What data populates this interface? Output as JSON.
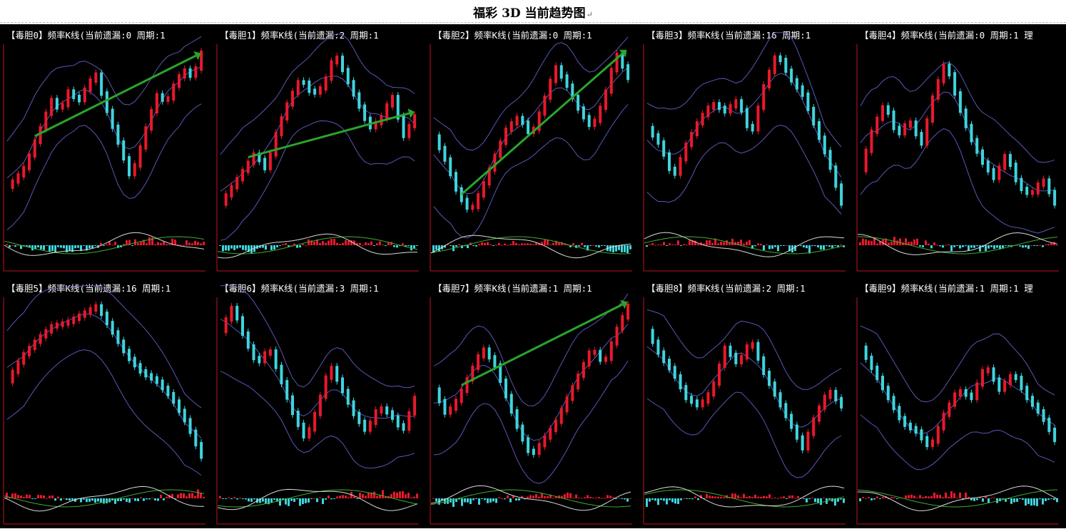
{
  "page": {
    "title": "福彩 3D 当前趋势图",
    "title_mark": "↵"
  },
  "colors": {
    "background": "#000000",
    "up": "#e8192c",
    "down": "#3fd4dd",
    "band": "#5b56b8",
    "frame": "#c0141c",
    "arrow": "#2aa52a",
    "ind_fast": "#d9d9d9",
    "ind_slow": "#3fae2f"
  },
  "chart_data": [
    {
      "type": "line",
      "label": "【毒胆0】频率K线(当前遗漏:0 周期:1",
      "y": [
        0.2,
        0.25,
        0.32,
        0.45,
        0.58,
        0.72,
        0.65,
        0.78,
        0.7,
        0.8,
        0.88,
        0.7,
        0.55,
        0.4,
        0.25,
        0.42,
        0.6,
        0.75,
        0.7,
        0.82,
        0.9,
        0.85,
        1.0
      ],
      "trend_arrow": true
    },
    {
      "type": "line",
      "label": "【毒胆1】频率K线(当前遗漏:2 周期:1",
      "y": [
        0.1,
        0.2,
        0.3,
        0.4,
        0.3,
        0.55,
        0.72,
        0.85,
        0.75,
        0.8,
        1.0,
        0.85,
        0.7,
        0.55,
        0.6,
        0.75,
        0.5,
        0.62
      ],
      "trend_arrow": true
    },
    {
      "type": "line",
      "label": "【毒胆2】频率K线(当前遗漏:0 周期:1",
      "y": [
        0.5,
        0.35,
        0.15,
        0.05,
        0.2,
        0.38,
        0.55,
        0.62,
        0.5,
        0.7,
        0.92,
        0.8,
        0.65,
        0.55,
        0.72,
        1.0,
        0.85
      ],
      "trend_arrow": true
    },
    {
      "type": "line",
      "label": "【毒胆3】频率K线(当前遗漏:16 周期:1",
      "y": [
        0.55,
        0.45,
        0.25,
        0.45,
        0.6,
        0.7,
        0.65,
        0.72,
        0.5,
        0.8,
        1.0,
        0.85,
        0.75,
        0.55,
        0.35,
        0.1
      ]
    },
    {
      "type": "line",
      "label": "【毒胆4】频率K线(当前遗漏:0 周期:1 理",
      "y": [
        0.3,
        0.55,
        0.7,
        0.5,
        0.6,
        0.45,
        0.75,
        0.95,
        0.7,
        0.5,
        0.35,
        0.25,
        0.4,
        0.2,
        0.15,
        0.25,
        0.1
      ]
    },
    {
      "type": "line",
      "label": "【毒胆5】频率K线(当前遗漏:16 周期:1",
      "y": [
        0.55,
        0.7,
        0.8,
        0.88,
        0.9,
        0.95,
        1.0,
        0.85,
        0.7,
        0.6,
        0.55,
        0.45,
        0.3,
        0.1
      ]
    },
    {
      "type": "line",
      "label": "【毒胆6】频率K线(当前遗漏:3 周期:1",
      "y": [
        0.85,
        1.0,
        0.8,
        0.65,
        0.75,
        0.55,
        0.35,
        0.2,
        0.4,
        0.65,
        0.5,
        0.35,
        0.25,
        0.4,
        0.35,
        0.25,
        0.45
      ]
    },
    {
      "type": "line",
      "label": "【毒胆7】频率K线(当前遗漏:1 周期:1",
      "y": [
        0.5,
        0.35,
        0.45,
        0.6,
        0.75,
        0.65,
        0.45,
        0.25,
        0.1,
        0.2,
        0.3,
        0.45,
        0.6,
        0.75,
        0.65,
        0.85,
        1.0
      ],
      "trend_arrow": true
    },
    {
      "type": "line",
      "label": "【毒胆8】频率K线(当前遗漏:2 周期:1",
      "y": [
        0.85,
        0.7,
        0.6,
        0.45,
        0.4,
        0.5,
        0.75,
        0.65,
        0.8,
        0.6,
        0.45,
        0.3,
        0.15,
        0.35,
        0.5,
        0.4
      ]
    },
    {
      "type": "line",
      "label": "【毒胆9】频率K线(当前遗漏:1 周期:1 理",
      "y": [
        0.75,
        0.6,
        0.45,
        0.3,
        0.25,
        0.15,
        0.35,
        0.5,
        0.45,
        0.65,
        0.5,
        0.6,
        0.45,
        0.35,
        0.2
      ]
    }
  ]
}
